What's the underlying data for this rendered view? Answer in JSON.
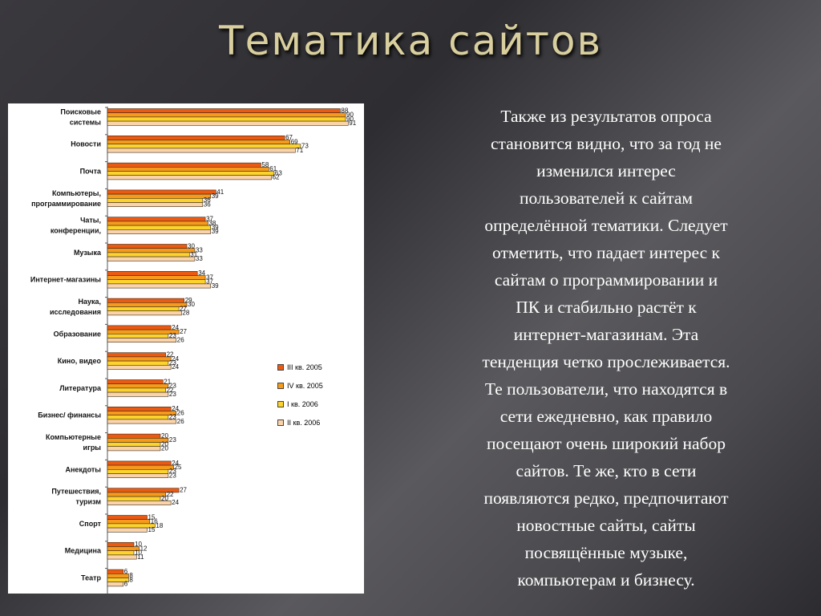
{
  "slide": {
    "title": "Тематика сайтов",
    "body": "Также из результатов опроса\nстановится видно, что за год не\nизменился интерес\nпользователей к сайтам\nопределённой тематики. Следует\nотметить, что падает интерес к\nсайтам о программировании и\nПК и стабильно растёт к\nинтернет-магазинам. Эта\nтенденция четко прослеживается.\nТе пользователи, что находятся в\nсети ежедневно, как правило\nпосещают очень широкий набор\nсайтов. Те же, кто в сети\nпоявляются редко, предпочитают\nновостные сайты, сайты\nпосвящённые музыке,\nкомпьютерам и бизнесу."
  },
  "chart_data": {
    "type": "bar",
    "orientation": "horizontal",
    "xlim": [
      0,
      100
    ],
    "categories": [
      [
        "Поисковые",
        "системы"
      ],
      [
        "Новости"
      ],
      [
        "Почта"
      ],
      [
        "Компьютеры,",
        "программирование"
      ],
      [
        "Чаты,",
        "конференции,"
      ],
      [
        "Музыка"
      ],
      [
        "Интернет-магазины"
      ],
      [
        "Наука,",
        "исследования"
      ],
      [
        "Образование"
      ],
      [
        "Кино, видео"
      ],
      [
        "Литература"
      ],
      [
        "Бизнес/ финансы"
      ],
      [
        "Компьютерные",
        "игры"
      ],
      [
        "Анекдоты"
      ],
      [
        "Путешествия,",
        "туризм"
      ],
      [
        "Спорт"
      ],
      [
        "Медицина"
      ],
      [
        "Театр"
      ]
    ],
    "series": [
      {
        "name": "III кв. 2005",
        "color": "#ec5a12",
        "values": [
          88,
          67,
          58,
          41,
          37,
          30,
          34,
          29,
          24,
          22,
          21,
          24,
          20,
          24,
          27,
          15,
          10,
          6
        ]
      },
      {
        "name": "IV кв. 2005",
        "color": "#f59a1c",
        "values": [
          90,
          69,
          61,
          39,
          38,
          33,
          37,
          30,
          27,
          24,
          23,
          26,
          23,
          25,
          22,
          16,
          12,
          8
        ]
      },
      {
        "name": "I кв. 2006",
        "color": "#fcd22c",
        "values": [
          90,
          73,
          63,
          36,
          39,
          31,
          37,
          27,
          23,
          23,
          22,
          23,
          20,
          23,
          20,
          18,
          10,
          8
        ]
      },
      {
        "name": "II кв. 2006",
        "color": "#fad3a8",
        "values": [
          91,
          71,
          62,
          36,
          39,
          33,
          39,
          28,
          26,
          24,
          23,
          26,
          20,
          23,
          24,
          15,
          11,
          6
        ]
      }
    ],
    "legend": "right-middle"
  }
}
